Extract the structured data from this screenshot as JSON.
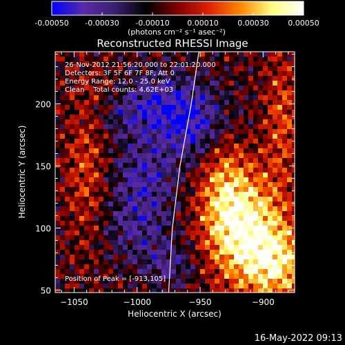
{
  "colorbar": {
    "tick_labels": [
      "-0.00050",
      "-0.00030",
      "-0.00010",
      "0.00010",
      "0.00030",
      "0.00050"
    ],
    "unit_label": "(photons cm⁻² s⁻¹ asec⁻²)"
  },
  "chart_data": {
    "type": "heatmap",
    "title": "Reconstructed RHESSI Image",
    "xlabel": "Heliocentric X (arcsec)",
    "ylabel": "Heliocentric Y (arcsec)",
    "xlim": [
      -1065,
      -875
    ],
    "ylim": [
      48,
      242
    ],
    "x_ticks": [
      -1050,
      -1000,
      -950,
      -900
    ],
    "y_ticks": [
      50,
      100,
      150,
      200
    ],
    "x_tick_labels": [
      "−1050",
      "−1000",
      "−950",
      "−900"
    ],
    "y_tick_labels": [
      "50",
      "100",
      "150",
      "200"
    ],
    "color_range": [
      -0.0005,
      0.0005
    ],
    "colormap": [
      "#0000ff",
      "#5a2aa8",
      "#3c2070",
      "#000000",
      "#800000",
      "#dd2200",
      "#ff8800",
      "#ffff80",
      "#ffffff"
    ],
    "limb_curve": [
      [
        -975,
        48
      ],
      [
        -972,
        100
      ],
      [
        -966,
        150
      ],
      [
        -957,
        200
      ],
      [
        -951,
        242
      ]
    ],
    "peak_position": [
      -913,
      105
    ],
    "annotations": [
      "26-Nov-2012 21:56:20.000 to 22:01:20.000",
      "Detectors: 3F 5F 6F 7F 8F, Att 0",
      "Energy Range: 12.0 - 25.0 keV",
      "Clean    Total counts: 4.62E+03"
    ],
    "peak_label": "Position of Peak = [-913,105]",
    "regions": [
      {
        "description": "bright source",
        "x": -913,
        "y": 105,
        "sx": 22,
        "sy": 30,
        "amp": 0.00045
      },
      {
        "description": "bright source",
        "x": -890,
        "y": 70,
        "sx": 22,
        "sy": 22,
        "amp": 0.0004
      },
      {
        "description": "ridge",
        "x": -932,
        "y": 135,
        "sx": 14,
        "sy": 40,
        "amp": 0.00025
      },
      {
        "description": "right edge",
        "x": -885,
        "y": 190,
        "sx": 10,
        "sy": 35,
        "amp": 0.00022
      },
      {
        "description": "left ridge",
        "x": -1040,
        "y": 150,
        "sx": 12,
        "sy": 45,
        "amp": 0.0002
      },
      {
        "description": "left top",
        "x": -1020,
        "y": 210,
        "sx": 18,
        "sy": 14,
        "amp": 0.00015
      },
      {
        "description": "negative",
        "x": -1000,
        "y": 200,
        "sx": 25,
        "sy": 18,
        "amp": -0.0003
      },
      {
        "description": "negative",
        "x": -955,
        "y": 185,
        "sx": 22,
        "sy": 22,
        "amp": -0.00035
      },
      {
        "description": "negative",
        "x": -995,
        "y": 140,
        "sx": 18,
        "sy": 20,
        "amp": -0.00025
      },
      {
        "description": "negative",
        "x": -975,
        "y": 70,
        "sx": 15,
        "sy": 12,
        "amp": -0.0002
      },
      {
        "description": "negative",
        "x": -1000,
        "y": 100,
        "sx": 20,
        "sy": 18,
        "amp": -0.0002
      }
    ]
  },
  "timestamp": "16-May-2022 09:13"
}
